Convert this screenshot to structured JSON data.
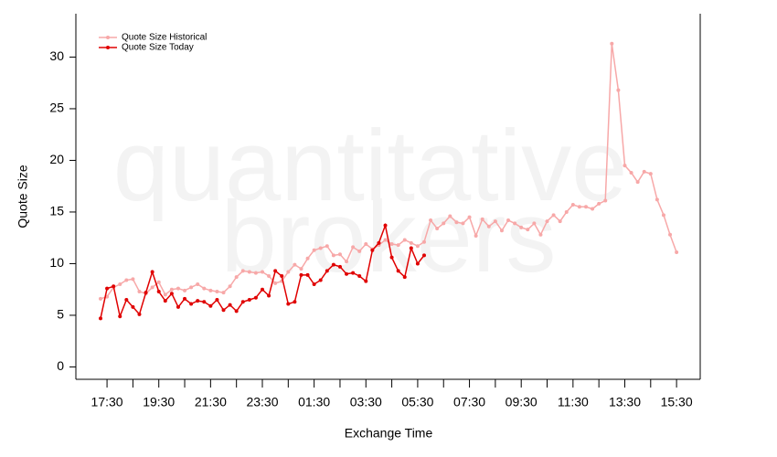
{
  "chart_data": {
    "type": "line",
    "watermark": [
      "quantitative",
      "brokers"
    ],
    "x_label": "Exchange Time",
    "y_label": "Quote Size",
    "categories": [
      null,
      "17:30",
      null,
      null,
      null,
      null,
      null,
      null,
      null,
      "19:30",
      null,
      null,
      null,
      null,
      null,
      null,
      null,
      "21:30",
      null,
      null,
      null,
      null,
      null,
      null,
      null,
      "23:30",
      null,
      null,
      null,
      null,
      null,
      null,
      null,
      "01:30",
      null,
      null,
      null,
      null,
      null,
      null,
      null,
      "03:30",
      null,
      null,
      null,
      null,
      null,
      null,
      null,
      "05:30",
      null,
      null,
      null,
      null,
      null,
      null,
      null,
      "07:30",
      null,
      null,
      null,
      null,
      null,
      null,
      null,
      "09:30",
      null,
      null,
      null,
      null,
      null,
      null,
      null,
      "11:30",
      null,
      null,
      null,
      null,
      null,
      null,
      null,
      "13:30",
      null,
      null,
      null,
      null,
      null,
      null,
      null,
      "15:30"
    ],
    "series": [
      {
        "name": "Quote Size Historical",
        "color": "#f7a8a8",
        "values": [
          6.6,
          6.8,
          7.7,
          8.0,
          8.4,
          8.5,
          7.3,
          7.1,
          7.7,
          8.2,
          7.0,
          7.5,
          7.6,
          7.4,
          7.7,
          8.0,
          7.6,
          7.4,
          7.3,
          7.2,
          7.8,
          8.7,
          9.3,
          9.2,
          9.1,
          9.2,
          8.8,
          8.1,
          8.3,
          9.2,
          9.9,
          9.5,
          10.5,
          11.3,
          11.5,
          11.7,
          10.8,
          10.9,
          10.2,
          11.6,
          11.2,
          11.9,
          11.4,
          11.8,
          12.3,
          11.9,
          11.8,
          12.3,
          12.0,
          11.7,
          12.1,
          14.2,
          13.4,
          13.9,
          14.6,
          14.0,
          13.9,
          14.5,
          12.7,
          14.3,
          13.6,
          14.1,
          13.2,
          14.2,
          13.9,
          13.5,
          13.3,
          13.9,
          12.8,
          14.1,
          14.7,
          14.1,
          15.0,
          15.7,
          15.5,
          15.5,
          15.3,
          15.8,
          16.1,
          31.3,
          26.8,
          19.5,
          18.8,
          17.9,
          18.9,
          18.7,
          16.2,
          14.7,
          12.8,
          11.1
        ]
      },
      {
        "name": "Quote Size Today",
        "color": "#e00000",
        "values": [
          4.7,
          7.6,
          7.8,
          4.9,
          6.5,
          5.8,
          5.1,
          7.2,
          9.2,
          7.3,
          6.4,
          7.1,
          5.8,
          6.6,
          6.1,
          6.4,
          6.3,
          5.9,
          6.5,
          5.5,
          6.0,
          5.4,
          6.3,
          6.5,
          6.7,
          7.5,
          6.9,
          9.3,
          8.8,
          6.1,
          6.3,
          8.9,
          8.9,
          8.0,
          8.4,
          9.3,
          9.9,
          9.7,
          9.0,
          9.1,
          8.8,
          8.3,
          11.3,
          12.0,
          13.7,
          10.6,
          9.3,
          8.7,
          11.5,
          10.0,
          10.8,
          null,
          null,
          null,
          null,
          null,
          null,
          null,
          null,
          null,
          null,
          null,
          null,
          null,
          null,
          null,
          null,
          null,
          null,
          null,
          null,
          null,
          null,
          null,
          null,
          null,
          null,
          null,
          null,
          null,
          null,
          null,
          null,
          null,
          null,
          null,
          null,
          null,
          null,
          null
        ]
      }
    ],
    "ylim": [
      -1.2,
      34.2
    ],
    "yticks": [
      0,
      5,
      10,
      15,
      20,
      25,
      30
    ],
    "legend": "top-left"
  }
}
